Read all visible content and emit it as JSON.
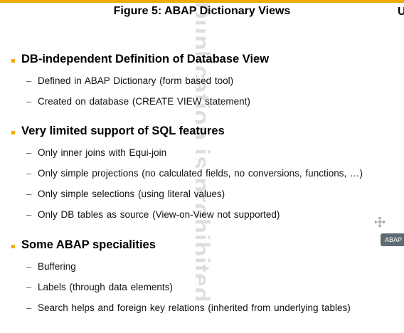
{
  "title": "Figure 5: ABAP Dictionary Views",
  "right_edge_letter": "U",
  "watermark": "Duplication is prohibited",
  "tooltip": "ABAP D",
  "accent_color": "#f0ab00",
  "sections": [
    {
      "heading": "DB-independent Definition of Database View",
      "items": [
        "Defined in ABAP Dictionary (form based tool)",
        "Created on database (CREATE VIEW statement)"
      ]
    },
    {
      "heading": "Very limited support of SQL features",
      "items": [
        "Only inner joins with Equi-join",
        "Only simple projections (no calculated fields, no conversions, functions, …)",
        "Only simple selections (using literal values)",
        "Only DB tables as source (View-on-View not supported)"
      ]
    },
    {
      "heading": "Some ABAP specialities",
      "items": [
        "Buffering",
        "Labels (through data elements)",
        "Search helps and foreign key relations (inherited from underlying tables)"
      ]
    }
  ],
  "dash": "–"
}
